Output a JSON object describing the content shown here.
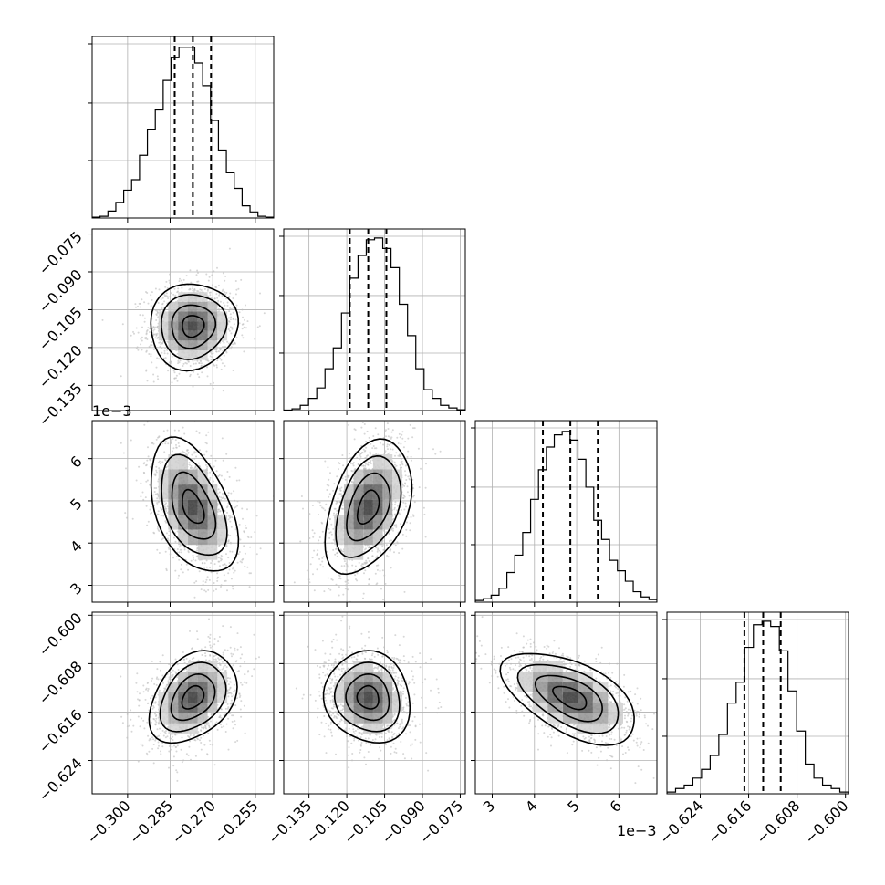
{
  "chart_data": {
    "type": "corner",
    "parameters": [
      {
        "range": [
          -0.3125,
          -0.2485
        ],
        "ticks": [
          -0.3,
          -0.285,
          -0.27,
          -0.255
        ],
        "tick_labels": [
          "−0.300",
          "−0.285",
          "−0.270",
          "−0.255"
        ],
        "mean": -0.277,
        "std": 0.0063,
        "quantiles": [
          -0.2834,
          -0.277,
          -0.2706
        ],
        "offset_label": ""
      },
      {
        "range": [
          -0.145,
          -0.073
        ],
        "ticks": [
          -0.135,
          -0.12,
          -0.105,
          -0.09,
          -0.075
        ],
        "tick_labels": [
          "−0.135",
          "−0.120",
          "−0.105",
          "−0.090",
          "−0.075"
        ],
        "mean": -0.1115,
        "std": 0.007,
        "quantiles": [
          -0.1188,
          -0.1115,
          -0.1043
        ],
        "offset_label": ""
      },
      {
        "range": [
          2.6,
          6.9
        ],
        "ticks": [
          3,
          4,
          5,
          6
        ],
        "tick_labels": [
          "3",
          "4",
          "5",
          "6"
        ],
        "mean": 4.85,
        "std": 0.65,
        "quantiles": [
          4.2,
          4.85,
          5.5
        ],
        "offset_label": "1e−3"
      },
      {
        "range": [
          -0.6295,
          -0.5995
        ],
        "ticks": [
          -0.624,
          -0.616,
          -0.608,
          -0.6
        ],
        "tick_labels": [
          "−0.624",
          "−0.616",
          "−0.608",
          "−0.600"
        ],
        "mean": -0.6136,
        "std": 0.0031,
        "quantiles": [
          -0.6167,
          -0.6136,
          -0.6107
        ],
        "offset_label": ""
      }
    ],
    "correlations": [
      [
        1.0,
        0.05,
        -0.45,
        0.35
      ],
      [
        0.05,
        1.0,
        0.4,
        -0.1
      ],
      [
        -0.45,
        0.4,
        1.0,
        -0.55
      ],
      [
        0.35,
        -0.1,
        -0.55,
        1.0
      ]
    ],
    "histograms": [
      [
        0.005,
        0.01,
        0.04,
        0.09,
        0.16,
        0.22,
        0.36,
        0.51,
        0.62,
        0.79,
        0.92,
        0.98,
        0.98,
        0.89,
        0.76,
        0.56,
        0.39,
        0.26,
        0.17,
        0.07,
        0.035,
        0.01,
        0.005
      ],
      [
        0.003,
        0.01,
        0.03,
        0.07,
        0.13,
        0.24,
        0.36,
        0.56,
        0.76,
        0.89,
        0.98,
        0.99,
        0.93,
        0.82,
        0.61,
        0.43,
        0.24,
        0.12,
        0.07,
        0.03,
        0.015,
        0.005
      ],
      [
        0.01,
        0.02,
        0.04,
        0.08,
        0.17,
        0.27,
        0.4,
        0.59,
        0.76,
        0.89,
        0.96,
        0.98,
        0.93,
        0.82,
        0.66,
        0.47,
        0.36,
        0.24,
        0.18,
        0.12,
        0.06,
        0.03,
        0.015
      ],
      [
        0.01,
        0.03,
        0.05,
        0.09,
        0.14,
        0.22,
        0.34,
        0.52,
        0.64,
        0.84,
        0.97,
        0.99,
        0.96,
        0.82,
        0.59,
        0.36,
        0.17,
        0.09,
        0.05,
        0.03,
        0.01
      ]
    ],
    "contour_levels_sigma": [
      0.5,
      1.0,
      1.5,
      2.0
    ],
    "grid": true,
    "legend": "none"
  }
}
